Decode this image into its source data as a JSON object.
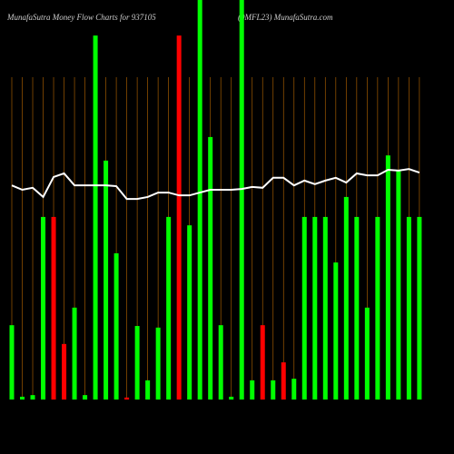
{
  "chart_data": {
    "type": "bar",
    "title": "MunafaSutra  Money Flow  Charts for 937105",
    "subtitle": "(9MFL23) MunafaSutra.com",
    "ylim": [
      0,
      100
    ],
    "values": [
      18.6,
      0.7,
      1.1,
      45.7,
      45.7,
      13.9,
      23.0,
      1.1,
      91.1,
      59.8,
      36.6,
      0.5,
      18.4,
      4.8,
      18.0,
      45.7,
      91.1,
      43.6,
      100,
      65.7,
      18.6,
      0.7,
      100,
      4.8,
      18.6,
      4.8,
      9.3,
      5.2,
      45.7,
      45.7,
      45.7,
      34.3,
      50.7,
      45.7,
      23.0,
      45.7,
      61.1,
      57.3,
      45.7,
      45.7
    ],
    "colors": [
      "#00ff00",
      "#00ff00",
      "#00ff00",
      "#00ff00",
      "#ff0000",
      "#ff0000",
      "#00ff00",
      "#00ff00",
      "#00ff00",
      "#00ff00",
      "#00ff00",
      "#ff0000",
      "#00ff00",
      "#00ff00",
      "#00ff00",
      "#00ff00",
      "#ff0000",
      "#00ff00",
      "#00ff00",
      "#00ff00",
      "#00ff00",
      "#00ff00",
      "#00ff00",
      "#00ff00",
      "#ff0000",
      "#00ff00",
      "#ff0000",
      "#00ff00",
      "#00ff00",
      "#00ff00",
      "#00ff00",
      "#00ff00",
      "#00ff00",
      "#00ff00",
      "#00ff00",
      "#00ff00",
      "#00ff00",
      "#00ff00",
      "#00ff00",
      "#00ff00"
    ],
    "line": {
      "color": "#ffffff",
      "values": [
        53.6,
        52.5,
        53.0,
        50.7,
        55.7,
        56.6,
        53.6,
        53.6,
        53.6,
        53.6,
        53.4,
        50.2,
        50.2,
        50.7,
        51.8,
        51.8,
        51.1,
        51.1,
        51.8,
        52.5,
        52.5,
        52.5,
        52.7,
        53.2,
        53.0,
        55.5,
        55.5,
        53.6,
        54.8,
        53.9,
        54.8,
        55.5,
        54.3,
        56.6,
        56.1,
        56.1,
        57.5,
        57.3,
        57.7,
        56.8
      ]
    },
    "grid_color": "#a05a00"
  }
}
